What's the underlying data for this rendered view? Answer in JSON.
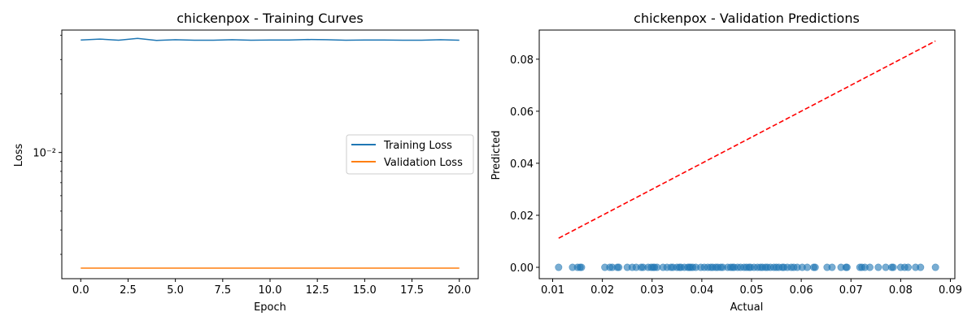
{
  "chart_data": [
    {
      "type": "line",
      "title": "chickenpox - Training Curves",
      "xlabel": "Epoch",
      "ylabel": "Loss",
      "yscale": "log",
      "xlim": [
        -1.0,
        21.0
      ],
      "ylim": [
        0.00225,
        0.0425
      ],
      "xticks": [
        0,
        2.5,
        5,
        7.5,
        10,
        12.5,
        15,
        17.5,
        20
      ],
      "xtick_labels": [
        "0.0",
        "2.5",
        "5.0",
        "7.5",
        "10.0",
        "12.5",
        "15.0",
        "17.5",
        "20.0"
      ],
      "ytick_major": [
        0.01
      ],
      "ytick_labels": [
        "10⁻²"
      ],
      "legend_position": "center-right",
      "grid": false,
      "x": [
        0,
        1,
        2,
        3,
        4,
        5,
        6,
        7,
        8,
        9,
        10,
        11,
        12,
        13,
        14,
        15,
        16,
        17,
        18,
        19,
        20
      ],
      "series": [
        {
          "name": "Training Loss",
          "color": "#1f77b4",
          "values": [
            0.0378,
            0.0382,
            0.0377,
            0.0385,
            0.0376,
            0.0379,
            0.0377,
            0.0377,
            0.0379,
            0.0377,
            0.0378,
            0.0378,
            0.038,
            0.0379,
            0.0377,
            0.0378,
            0.0378,
            0.0377,
            0.0377,
            0.0379,
            0.0377
          ]
        },
        {
          "name": "Validation Loss",
          "color": "#ff7f0e",
          "values": [
            0.00255,
            0.00255,
            0.00255,
            0.00255,
            0.00255,
            0.00255,
            0.00255,
            0.00255,
            0.00255,
            0.00255,
            0.00255,
            0.00255,
            0.00255,
            0.00255,
            0.00255,
            0.00255,
            0.00255,
            0.00255,
            0.00255,
            0.00255,
            0.00255
          ]
        }
      ]
    },
    {
      "type": "scatter",
      "title": "chickenpox - Validation Predictions",
      "xlabel": "Actual",
      "ylabel": "Predicted",
      "xlim": [
        0.0073,
        0.0909
      ],
      "ylim": [
        -0.00437,
        0.0912
      ],
      "xticks": [
        0.01,
        0.02,
        0.03,
        0.04,
        0.05,
        0.06,
        0.07,
        0.08,
        0.09
      ],
      "xtick_labels": [
        "0.01",
        "0.02",
        "0.03",
        "0.04",
        "0.05",
        "0.06",
        "0.07",
        "0.08",
        "0.09"
      ],
      "yticks": [
        0.0,
        0.02,
        0.04,
        0.06,
        0.08
      ],
      "ytick_labels": [
        "0.00",
        "0.02",
        "0.04",
        "0.06",
        "0.08"
      ],
      "grid": false,
      "point_color": "#1f77b4",
      "reference_line": {
        "style": "dashed",
        "color": "#ff0000",
        "x": [
          0.0112,
          0.087
        ],
        "y": [
          0.0112,
          0.087
        ]
      },
      "points": {
        "x": [
          0.0112,
          0.014,
          0.015,
          0.0155,
          0.0158,
          0.0205,
          0.0215,
          0.022,
          0.023,
          0.0233,
          0.025,
          0.026,
          0.0268,
          0.0278,
          0.0282,
          0.0292,
          0.0298,
          0.0302,
          0.0305,
          0.031,
          0.0322,
          0.033,
          0.0338,
          0.0342,
          0.035,
          0.0355,
          0.0358,
          0.0365,
          0.0372,
          0.0375,
          0.0378,
          0.0382,
          0.0388,
          0.0398,
          0.0405,
          0.0412,
          0.0418,
          0.0422,
          0.0428,
          0.0432,
          0.0438,
          0.0442,
          0.0452,
          0.0458,
          0.0462,
          0.0465,
          0.0472,
          0.0478,
          0.0485,
          0.049,
          0.0495,
          0.0498,
          0.0505,
          0.0512,
          0.0518,
          0.0522,
          0.0528,
          0.0532,
          0.0538,
          0.0545,
          0.055,
          0.0555,
          0.0562,
          0.0565,
          0.0572,
          0.058,
          0.0585,
          0.0592,
          0.0602,
          0.0612,
          0.0625,
          0.0628,
          0.0652,
          0.0662,
          0.068,
          0.069,
          0.0692,
          0.0718,
          0.0722,
          0.0728,
          0.0738,
          0.0755,
          0.077,
          0.0782,
          0.0785,
          0.08,
          0.0808,
          0.0815,
          0.083,
          0.084,
          0.087
        ],
        "y": [
          0,
          0,
          0,
          0,
          0,
          0,
          0,
          0,
          0,
          0,
          0,
          0,
          0,
          0,
          0,
          0,
          0,
          0,
          0,
          0,
          0,
          0,
          0,
          0,
          0,
          0,
          0,
          0,
          0,
          0,
          0,
          0,
          0,
          0,
          0,
          0,
          0,
          0,
          0,
          0,
          0,
          0,
          0,
          0,
          0,
          0,
          0,
          0,
          0,
          0,
          0,
          0,
          0,
          0,
          0,
          0,
          0,
          0,
          0,
          0,
          0,
          0,
          0,
          0,
          0,
          0,
          0,
          0,
          0,
          0,
          0,
          0,
          0,
          0,
          0,
          0,
          0,
          0,
          0,
          0,
          0,
          0,
          0,
          0,
          0,
          0,
          0,
          0,
          0,
          0,
          0
        ]
      }
    }
  ]
}
